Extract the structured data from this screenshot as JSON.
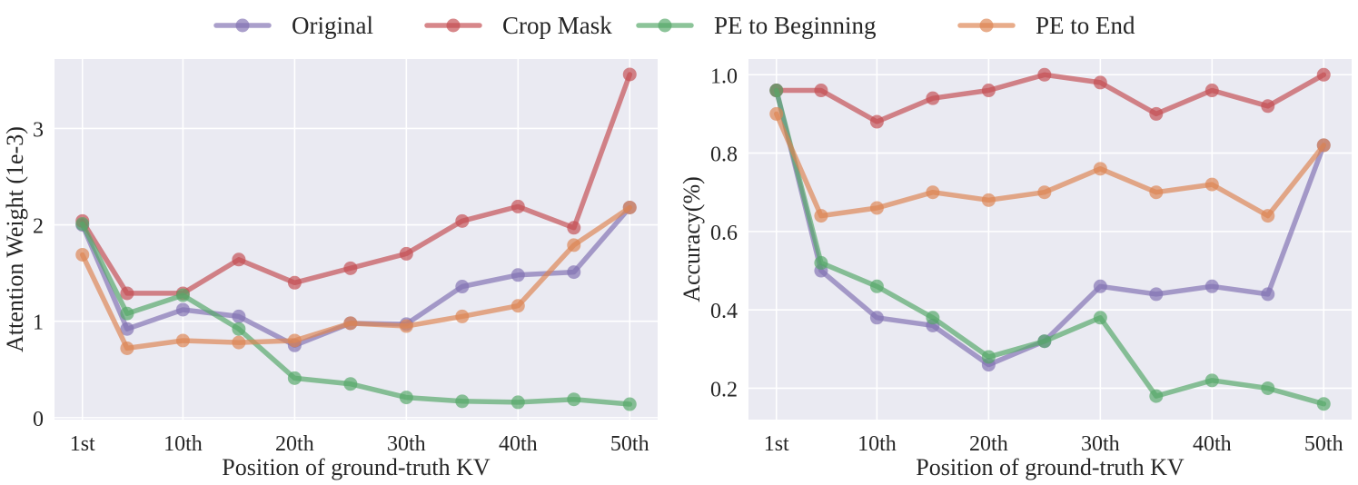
{
  "legend": [
    {
      "name": "Original",
      "color": "#8172b3"
    },
    {
      "name": "Crop Mask",
      "color": "#c44e52"
    },
    {
      "name": "PE to Beginning",
      "color": "#55a868"
    },
    {
      "name": "PE to End",
      "color": "#dd8452"
    }
  ],
  "chart_data": [
    {
      "type": "line",
      "xlabel": "Position of ground-truth KV",
      "ylabel": "Attention Weight (1e-3)",
      "x": [
        1,
        5,
        10,
        15,
        20,
        25,
        30,
        35,
        40,
        45,
        50
      ],
      "xticks": [
        1,
        10,
        20,
        30,
        40,
        50
      ],
      "xtick_labels": [
        "1st",
        "10th",
        "20th",
        "30th",
        "40th",
        "50th"
      ],
      "xlim": [
        -1.5,
        52.5
      ],
      "yticks": [
        0,
        1,
        2,
        3
      ],
      "ytick_labels": [
        "0",
        "1",
        "2",
        "3"
      ],
      "ylim": [
        -0.02,
        3.72
      ],
      "grid": true,
      "series": [
        {
          "name": "Original",
          "color": "#8172b3",
          "values": [
            2.0,
            0.92,
            1.12,
            1.05,
            0.75,
            0.98,
            0.97,
            1.36,
            1.48,
            1.51,
            2.18
          ]
        },
        {
          "name": "Crop Mask",
          "color": "#c44e52",
          "values": [
            2.04,
            1.29,
            1.29,
            1.64,
            1.4,
            1.55,
            1.7,
            2.04,
            2.19,
            1.97,
            3.56
          ]
        },
        {
          "name": "PE to Beginning",
          "color": "#55a868",
          "values": [
            2.01,
            1.08,
            1.27,
            0.92,
            0.41,
            0.35,
            0.21,
            0.17,
            0.16,
            0.19,
            0.14
          ]
        },
        {
          "name": "PE to End",
          "color": "#dd8452",
          "values": [
            1.69,
            0.72,
            0.8,
            0.78,
            0.8,
            0.98,
            0.95,
            1.05,
            1.16,
            1.79,
            2.18
          ]
        }
      ]
    },
    {
      "type": "line",
      "xlabel": "Position of ground-truth KV",
      "ylabel": "Accuracy(%)",
      "x": [
        1,
        5,
        10,
        15,
        20,
        25,
        30,
        35,
        40,
        45,
        50
      ],
      "xticks": [
        1,
        10,
        20,
        30,
        40,
        50
      ],
      "xtick_labels": [
        "1st",
        "10th",
        "20th",
        "30th",
        "40th",
        "50th"
      ],
      "xlim": [
        -1.5,
        52.5
      ],
      "yticks": [
        0.2,
        0.4,
        0.6,
        0.8,
        1.0
      ],
      "ytick_labels": [
        "0.2",
        "0.4",
        "0.6",
        "0.8",
        "1.0"
      ],
      "ylim": [
        0.12,
        1.04
      ],
      "grid": true,
      "series": [
        {
          "name": "Original",
          "color": "#8172b3",
          "values": [
            0.96,
            0.5,
            0.38,
            0.36,
            0.26,
            0.32,
            0.46,
            0.44,
            0.46,
            0.44,
            0.82
          ]
        },
        {
          "name": "Crop Mask",
          "color": "#c44e52",
          "values": [
            0.96,
            0.96,
            0.88,
            0.94,
            0.96,
            1.0,
            0.98,
            0.9,
            0.96,
            0.92,
            1.0
          ]
        },
        {
          "name": "PE to Beginning",
          "color": "#55a868",
          "values": [
            0.96,
            0.52,
            0.46,
            0.38,
            0.28,
            0.32,
            0.38,
            0.18,
            0.22,
            0.2,
            0.16
          ]
        },
        {
          "name": "PE to End",
          "color": "#dd8452",
          "values": [
            0.9,
            0.64,
            0.66,
            0.7,
            0.68,
            0.7,
            0.76,
            0.7,
            0.72,
            0.64,
            0.82
          ]
        }
      ]
    }
  ]
}
